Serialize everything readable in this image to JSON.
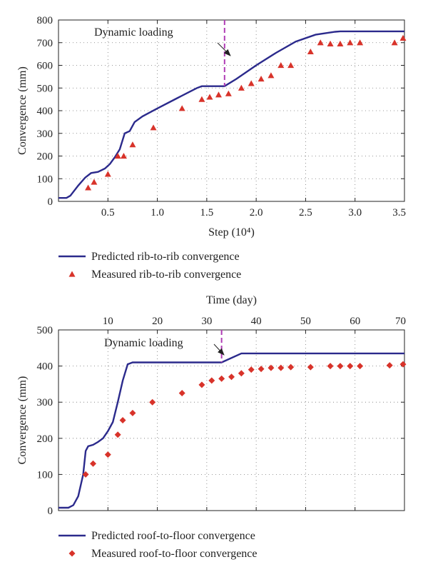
{
  "colors": {
    "predicted_line": "#2b2a8c",
    "measured_marker": "#d8332a",
    "dynamic_marker_line": "#b03cb5",
    "axis": "#222222",
    "grid": "#777777"
  },
  "chart_data": [
    {
      "type": "line",
      "xlabel": "Step (10⁴)",
      "ylabel": "Convergence (mm)",
      "xlim": [
        0,
        3.5
      ],
      "ylim": [
        0,
        800
      ],
      "x_ticks": [
        0.5,
        1.0,
        1.5,
        2.0,
        2.5,
        3.0,
        3.5
      ],
      "x_tick_labels": [
        "0.5",
        "1.0",
        "1.5",
        "2.0",
        "2.5",
        "3.0",
        "3.5"
      ],
      "y_ticks": [
        0,
        100,
        200,
        300,
        400,
        500,
        600,
        700,
        800
      ],
      "y_tick_labels": [
        "0",
        "100",
        "200",
        "300",
        "400",
        "500",
        "600",
        "700",
        "800"
      ],
      "grid": true,
      "legend_position": "below",
      "annotation": {
        "text": "Dynamic loading",
        "x": 1.68
      },
      "series": [
        {
          "name": "Predicted rib-to-rib convergence",
          "style": "line",
          "points": [
            [
              0.0,
              15
            ],
            [
              0.08,
              15
            ],
            [
              0.12,
              25
            ],
            [
              0.2,
              70
            ],
            [
              0.27,
              105
            ],
            [
              0.33,
              125
            ],
            [
              0.4,
              130
            ],
            [
              0.47,
              145
            ],
            [
              0.52,
              165
            ],
            [
              0.57,
              195
            ],
            [
              0.62,
              230
            ],
            [
              0.67,
              300
            ],
            [
              0.72,
              310
            ],
            [
              0.77,
              350
            ],
            [
              0.85,
              375
            ],
            [
              1.0,
              410
            ],
            [
              1.2,
              455
            ],
            [
              1.4,
              500
            ],
            [
              1.45,
              508
            ],
            [
              1.68,
              508
            ],
            [
              1.8,
              540
            ],
            [
              2.0,
              600
            ],
            [
              2.2,
              655
            ],
            [
              2.4,
              705
            ],
            [
              2.6,
              735
            ],
            [
              2.8,
              748
            ],
            [
              2.85,
              750
            ],
            [
              3.5,
              750
            ]
          ]
        },
        {
          "name": "Measured rib-to-rib convergence",
          "style": "triangle",
          "points": [
            [
              0.3,
              60
            ],
            [
              0.36,
              85
            ],
            [
              0.5,
              120
            ],
            [
              0.6,
              200
            ],
            [
              0.66,
              200
            ],
            [
              0.75,
              250
            ],
            [
              0.96,
              325
            ],
            [
              1.25,
              410
            ],
            [
              1.45,
              450
            ],
            [
              1.53,
              460
            ],
            [
              1.62,
              470
            ],
            [
              1.72,
              475
            ],
            [
              1.85,
              500
            ],
            [
              1.95,
              520
            ],
            [
              2.05,
              540
            ],
            [
              2.15,
              555
            ],
            [
              2.25,
              600
            ],
            [
              2.35,
              600
            ],
            [
              2.55,
              660
            ],
            [
              2.65,
              700
            ],
            [
              2.75,
              695
            ],
            [
              2.85,
              695
            ],
            [
              2.95,
              700
            ],
            [
              3.05,
              700
            ],
            [
              3.4,
              700
            ],
            [
              3.5,
              720
            ]
          ]
        }
      ]
    },
    {
      "type": "line",
      "xlabel": "Time (day)",
      "ylabel": "Convergence (mm)",
      "xlim": [
        0,
        70
      ],
      "ylim": [
        0,
        500
      ],
      "x_ticks": [
        10,
        20,
        30,
        40,
        50,
        60,
        70
      ],
      "x_tick_labels": [
        "10",
        "20",
        "30",
        "40",
        "50",
        "60",
        "70"
      ],
      "y_ticks": [
        0,
        100,
        200,
        300,
        400,
        500
      ],
      "y_tick_labels": [
        "0",
        "100",
        "200",
        "300",
        "400",
        "500"
      ],
      "grid": true,
      "legend_position": "below",
      "annotation": {
        "text": "Dynamic loading",
        "x": 33
      },
      "series": [
        {
          "name": "Predicted roof-to-floor convergence",
          "style": "line",
          "points": [
            [
              0,
              8
            ],
            [
              2,
              8
            ],
            [
              3,
              15
            ],
            [
              4,
              40
            ],
            [
              5,
              100
            ],
            [
              5.5,
              165
            ],
            [
              6,
              178
            ],
            [
              7,
              182
            ],
            [
              8,
              190
            ],
            [
              9,
              200
            ],
            [
              10,
              220
            ],
            [
              11,
              245
            ],
            [
              12,
              300
            ],
            [
              13,
              360
            ],
            [
              14,
              405
            ],
            [
              15,
              410
            ],
            [
              33,
              410
            ],
            [
              37,
              435
            ],
            [
              70,
              435
            ]
          ]
        },
        {
          "name": "Measured roof-to-floor convergence",
          "style": "diamond",
          "points": [
            [
              5.5,
              100
            ],
            [
              7,
              130
            ],
            [
              10,
              155
            ],
            [
              12,
              210
            ],
            [
              13,
              250
            ],
            [
              15,
              270
            ],
            [
              19,
              300
            ],
            [
              25,
              325
            ],
            [
              29,
              348
            ],
            [
              31,
              360
            ],
            [
              33,
              365
            ],
            [
              35,
              370
            ],
            [
              37,
              380
            ],
            [
              39,
              390
            ],
            [
              41,
              392
            ],
            [
              43,
              395
            ],
            [
              45,
              395
            ],
            [
              47,
              397
            ],
            [
              51,
              397
            ],
            [
              55,
              400
            ],
            [
              57,
              400
            ],
            [
              59,
              400
            ],
            [
              61,
              400
            ],
            [
              67,
              402
            ],
            [
              70,
              405
            ]
          ]
        }
      ]
    }
  ]
}
